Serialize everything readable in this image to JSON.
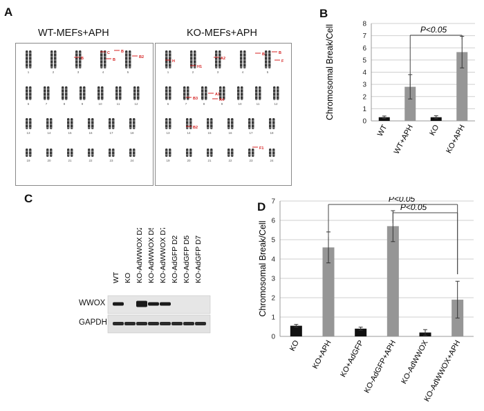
{
  "figure": {
    "panels": {
      "A": "A",
      "B": "B",
      "C": "C",
      "D": "D"
    },
    "colors": {
      "black_bar": "#111111",
      "gray_bar": "#969696",
      "grid": "#cfcfcf",
      "annotation": "#d42020"
    }
  },
  "karyotype": {
    "wt_title": "WT-MEFs+APH",
    "ko_title": "KO-MEFs+APH",
    "wt_labels": [
      "B",
      "C",
      "B",
      "B",
      "B2"
    ],
    "ko_labels": [
      "A2",
      "B",
      "B",
      "F",
      "H",
      "H1",
      "A1",
      "A4",
      "B3",
      "B2",
      "F1"
    ]
  },
  "blot": {
    "lanes": [
      "WT",
      "KO",
      "KO-AdWWOX D2",
      "KO-AdWWOX D5",
      "KO-AdWWOX D7",
      "KO-AdGFP D2",
      "KO-AdGFP D5",
      "KO-AdGFP D7"
    ],
    "rows": [
      "WWOX",
      "GAPDH"
    ],
    "wwox_band_present": [
      1,
      0,
      1,
      1,
      1,
      0,
      0,
      0
    ]
  },
  "chart_data": [
    {
      "panel": "B",
      "type": "bar",
      "categories": [
        "WT",
        "WT+APH",
        "KO",
        "KO+APH"
      ],
      "values": [
        0.3,
        2.8,
        0.3,
        5.65
      ],
      "errors": [
        0.1,
        1.0,
        0.12,
        1.3
      ],
      "bar_colors": [
        "black",
        "gray",
        "black",
        "gray"
      ],
      "ylabel": "Chromosomal Break/Cell",
      "ylim": [
        0,
        8
      ],
      "yticks": [
        "0",
        "1",
        "2",
        "3",
        "4",
        "5",
        "6",
        "7",
        "8"
      ],
      "grid": true,
      "annotations": [
        {
          "text": "P<0.05",
          "from": "WT+APH",
          "to": "KO+APH"
        }
      ]
    },
    {
      "panel": "D",
      "type": "bar",
      "categories": [
        "KO",
        "KO+APH",
        "KO+AdGFP",
        "KO-AdGFP+APH",
        "KO-AdWWOX",
        "KO-AdWWOX+APH"
      ],
      "values": [
        0.55,
        4.6,
        0.4,
        5.7,
        0.2,
        1.9
      ],
      "errors": [
        0.07,
        0.8,
        0.08,
        0.8,
        0.15,
        0.95
      ],
      "bar_colors": [
        "black",
        "gray",
        "black",
        "gray",
        "black",
        "gray"
      ],
      "ylabel": "Chromosomal Break/Cell",
      "ylim": [
        0,
        7
      ],
      "yticks": [
        "0",
        "1",
        "2",
        "3",
        "4",
        "5",
        "6",
        "7"
      ],
      "grid": true,
      "annotations": [
        {
          "text": "P<0.05",
          "from": "KO+APH",
          "to": "KO-AdWWOX+APH"
        },
        {
          "text": "P<0.05",
          "from": "KO-AdGFP+APH",
          "to": "KO-AdWWOX+APH"
        }
      ]
    }
  ]
}
